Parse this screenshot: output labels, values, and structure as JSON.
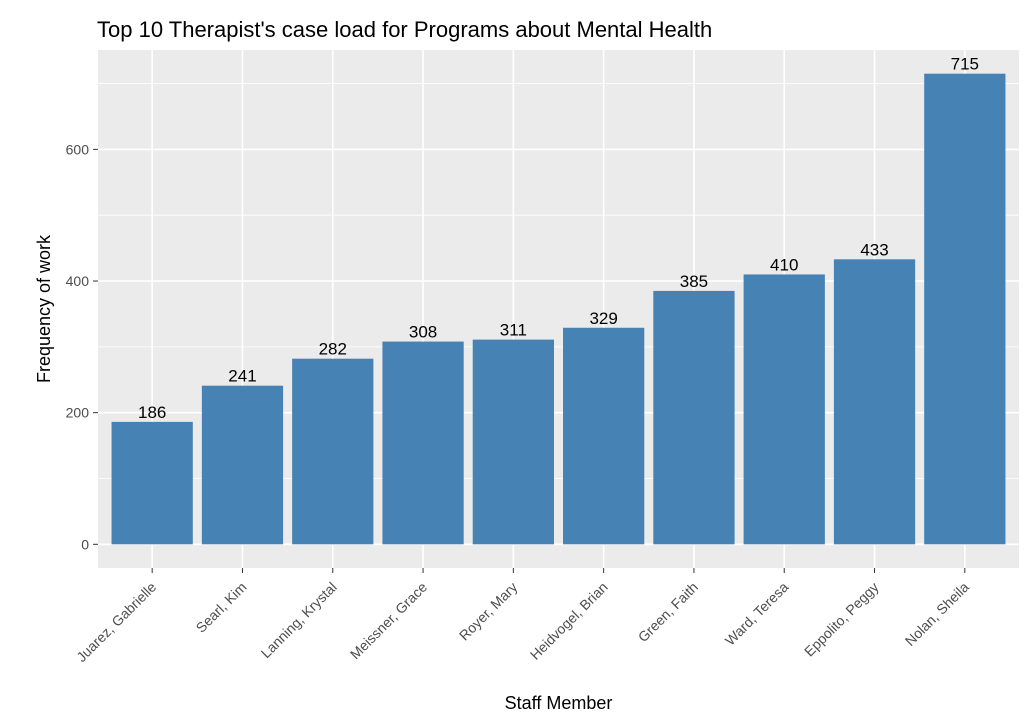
{
  "chart_data": {
    "type": "bar",
    "title": "Top 10 Therapist's case load for Programs about Mental Health",
    "xlabel": "Staff Member",
    "ylabel": "Frequency of work",
    "categories": [
      "Juarez, Gabrielle",
      "Searl, Kim",
      "Lanning, Krystal",
      "Meissner, Grace",
      "Royer, Mary",
      "Heidvogel, Brian",
      "Green, Faith",
      "Ward, Teresa",
      "Eppolito, Peggy",
      "Nolan, Sheila"
    ],
    "values": [
      186,
      241,
      282,
      308,
      311,
      329,
      385,
      410,
      433,
      715
    ],
    "data_labels": [
      "186",
      "241",
      "282",
      "308",
      "311",
      "329",
      "385",
      "410",
      "433",
      "715"
    ],
    "yticks": [
      0,
      200,
      400,
      600
    ],
    "ytick_labels": [
      "0",
      "200",
      "400",
      "600"
    ],
    "ylim": [
      -36,
      751
    ],
    "grid": true,
    "legend": "none",
    "colors": {
      "bar": "#4682B4",
      "panel": "#EBEBEB",
      "grid": "#FFFFFF",
      "tick_text": "#4D4D4D",
      "text": "#000000"
    }
  }
}
